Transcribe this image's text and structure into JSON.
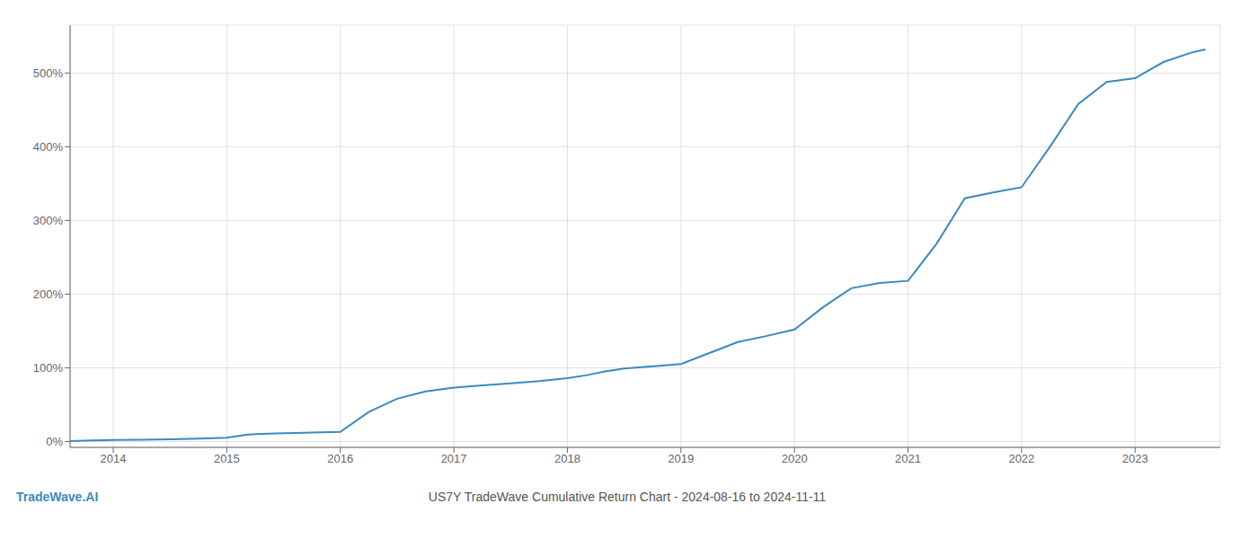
{
  "chart_data": {
    "type": "line",
    "title": "US7Y TradeWave Cumulative Return Chart - 2024-08-16 to 2024-11-11",
    "annotations": [
      "TradeWave.AI"
    ],
    "color": "#3a8abf",
    "x": [
      2013.62,
      2013.75,
      2014.0,
      2014.25,
      2014.5,
      2014.75,
      2015.0,
      2015.08,
      2015.17,
      2015.25,
      2015.42,
      2015.6,
      2015.75,
      2016.0,
      2016.25,
      2016.5,
      2016.75,
      2017.0,
      2017.25,
      2017.5,
      2017.75,
      2018.0,
      2018.17,
      2018.33,
      2018.5,
      2018.75,
      2019.0,
      2019.25,
      2019.5,
      2019.75,
      2020.0,
      2020.25,
      2020.5,
      2020.75,
      2021.0,
      2021.25,
      2021.5,
      2021.75,
      2022.0,
      2022.25,
      2022.5,
      2022.75,
      2023.0,
      2023.25,
      2023.5,
      2023.62
    ],
    "values": [
      0.005,
      0.01,
      0.02,
      0.025,
      0.03,
      0.04,
      0.05,
      0.07,
      0.09,
      0.1,
      0.11,
      0.115,
      0.12,
      0.13,
      0.4,
      0.58,
      0.68,
      0.73,
      0.76,
      0.79,
      0.82,
      0.86,
      0.9,
      0.95,
      0.99,
      1.02,
      1.05,
      1.2,
      1.35,
      1.43,
      1.52,
      1.82,
      2.08,
      2.15,
      2.18,
      2.68,
      3.3,
      3.38,
      3.45,
      4.0,
      4.58,
      4.88,
      4.93,
      5.15,
      5.28,
      5.32
    ],
    "xlim": [
      2013.62,
      2023.75
    ],
    "ylim": [
      -0.08,
      5.65
    ],
    "xticks": [
      2014,
      2015,
      2016,
      2017,
      2018,
      2019,
      2020,
      2021,
      2022,
      2023
    ],
    "yticks": [
      {
        "value": 0,
        "label": "0%"
      },
      {
        "value": 1,
        "label": "100%"
      },
      {
        "value": 2,
        "label": "200%"
      },
      {
        "value": 3,
        "label": "300%"
      },
      {
        "value": 4,
        "label": "400%"
      },
      {
        "value": 5,
        "label": "500%"
      }
    ],
    "grid": true
  }
}
